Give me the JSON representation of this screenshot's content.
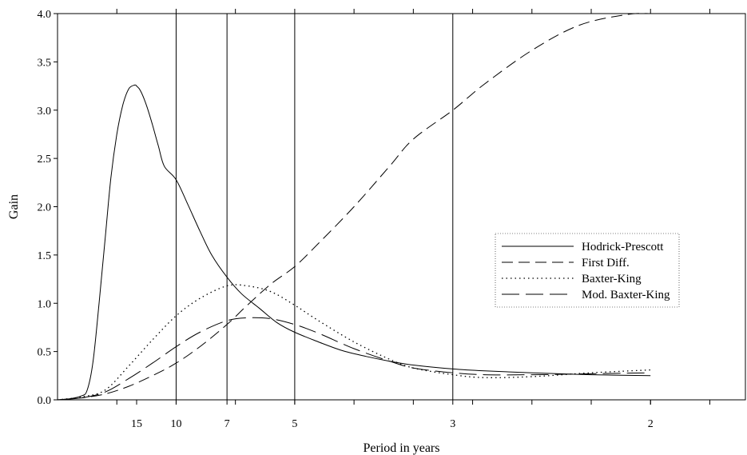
{
  "chart_data": {
    "type": "line",
    "title": "",
    "xlabel": "Period in years",
    "ylabel": "Gain",
    "x_unit": "frequency (cycles per year, i.e. 1/period)",
    "xlim": [
      0,
      0.58
    ],
    "ylim": [
      0,
      4.0
    ],
    "x_ticks": [
      {
        "value": 0.0667,
        "label": "15"
      },
      {
        "value": 0.1,
        "label": "10"
      },
      {
        "value": 0.1429,
        "label": "7"
      },
      {
        "value": 0.2,
        "label": "5"
      },
      {
        "value": 0.3333,
        "label": "3"
      },
      {
        "value": 0.5,
        "label": "2"
      }
    ],
    "y_ticks": [
      "0.0",
      "0.5",
      "1.0",
      "1.5",
      "2.0",
      "2.5",
      "3.0",
      "3.5",
      "4.0"
    ],
    "vertical_reference_lines": [
      0.1,
      0.1429,
      0.2,
      0.3333
    ],
    "grid": false,
    "legend_position": "right",
    "series": [
      {
        "name": "Hodrick-Prescott",
        "style": "solid",
        "x": [
          0,
          0.01,
          0.02,
          0.025,
          0.03,
          0.035,
          0.04,
          0.045,
          0.05,
          0.055,
          0.06,
          0.065,
          0.0667,
          0.07,
          0.075,
          0.08,
          0.085,
          0.09,
          0.1,
          0.11,
          0.12,
          0.13,
          0.1429,
          0.155,
          0.17,
          0.185,
          0.2,
          0.22,
          0.24,
          0.26,
          0.28,
          0.3,
          0.3333,
          0.36,
          0.4,
          0.45,
          0.5
        ],
        "y": [
          0,
          0.01,
          0.04,
          0.1,
          0.4,
          1.0,
          1.65,
          2.3,
          2.75,
          3.05,
          3.22,
          3.26,
          3.25,
          3.2,
          3.05,
          2.85,
          2.63,
          2.42,
          2.28,
          2.02,
          1.75,
          1.5,
          1.27,
          1.1,
          0.95,
          0.8,
          0.7,
          0.6,
          0.51,
          0.45,
          0.4,
          0.36,
          0.32,
          0.3,
          0.28,
          0.26,
          0.25
        ]
      },
      {
        "name": "First Diff.",
        "style": "dashed",
        "x": [
          0,
          0.02,
          0.04,
          0.06,
          0.08,
          0.1,
          0.12,
          0.1429,
          0.16,
          0.18,
          0.2,
          0.22,
          0.25,
          0.28,
          0.3,
          0.3333,
          0.36,
          0.4,
          0.44,
          0.48,
          0.5
        ],
        "y": [
          0,
          0.02,
          0.06,
          0.14,
          0.25,
          0.38,
          0.55,
          0.78,
          0.98,
          1.2,
          1.38,
          1.62,
          2.0,
          2.42,
          2.7,
          3.0,
          3.27,
          3.62,
          3.88,
          3.99,
          4.0
        ]
      },
      {
        "name": "Baxter-King",
        "style": "dotted",
        "x": [
          0,
          0.02,
          0.04,
          0.06,
          0.08,
          0.1,
          0.12,
          0.1429,
          0.16,
          0.18,
          0.2,
          0.22,
          0.25,
          0.28,
          0.3,
          0.3333,
          0.36,
          0.4,
          0.45,
          0.5
        ],
        "y": [
          0,
          0.03,
          0.1,
          0.35,
          0.62,
          0.87,
          1.05,
          1.18,
          1.18,
          1.12,
          0.98,
          0.82,
          0.6,
          0.42,
          0.33,
          0.26,
          0.23,
          0.24,
          0.28,
          0.31
        ]
      },
      {
        "name": "Mod. Baxter-King",
        "style": "long-dash",
        "x": [
          0,
          0.02,
          0.04,
          0.06,
          0.08,
          0.1,
          0.12,
          0.1429,
          0.16,
          0.18,
          0.2,
          0.22,
          0.25,
          0.28,
          0.3,
          0.3333,
          0.36,
          0.4,
          0.45,
          0.5
        ],
        "y": [
          0,
          0.02,
          0.08,
          0.22,
          0.38,
          0.55,
          0.7,
          0.82,
          0.85,
          0.84,
          0.78,
          0.69,
          0.53,
          0.4,
          0.33,
          0.28,
          0.26,
          0.26,
          0.27,
          0.28
        ]
      }
    ]
  }
}
